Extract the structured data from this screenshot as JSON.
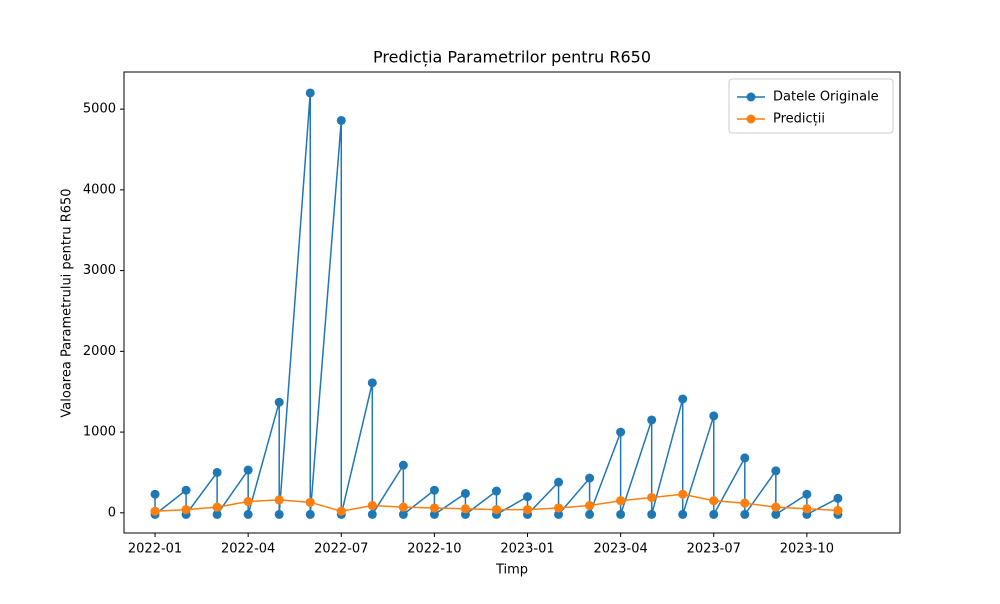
{
  "chart_data": {
    "type": "line",
    "title": "Predicția Parametrilor pentru R650",
    "xlabel": "Timp",
    "ylabel": "Valoarea Parametrului pentru R650",
    "x": [
      "2022-01",
      "2022-01",
      "2022-02",
      "2022-02",
      "2022-03",
      "2022-03",
      "2022-04",
      "2022-04",
      "2022-05",
      "2022-05",
      "2022-06",
      "2022-06",
      "2022-07",
      "2022-07",
      "2022-08",
      "2022-08",
      "2022-09",
      "2022-09",
      "2022-10",
      "2022-10",
      "2022-11",
      "2022-11",
      "2022-12",
      "2022-12",
      "2023-01",
      "2023-01",
      "2023-02",
      "2023-02",
      "2023-03",
      "2023-03",
      "2023-04",
      "2023-04",
      "2023-05",
      "2023-05",
      "2023-06",
      "2023-06",
      "2023-07",
      "2023-07",
      "2023-08",
      "2023-08",
      "2023-09",
      "2023-09",
      "2023-10",
      "2023-10",
      "2023-11",
      "2023-11"
    ],
    "series": [
      {
        "name": "Datele Originale",
        "color": "#1f77b4",
        "values": [
          230,
          -20,
          280,
          -20,
          500,
          -20,
          530,
          -20,
          1370,
          -20,
          5200,
          -20,
          4860,
          -20,
          1610,
          -20,
          590,
          -20,
          280,
          -20,
          240,
          -20,
          270,
          -20,
          200,
          -20,
          380,
          -20,
          430,
          -20,
          1000,
          -20,
          1150,
          -20,
          1410,
          -20,
          1200,
          -20,
          680,
          -20,
          520,
          -20,
          230,
          -20,
          180,
          -20
        ]
      },
      {
        "name": "Predicții",
        "color": "#ff7f0e",
        "values": [
          20,
          20,
          40,
          40,
          70,
          70,
          140,
          140,
          160,
          160,
          130,
          130,
          20,
          20,
          90,
          90,
          70,
          70,
          60,
          60,
          50,
          50,
          40,
          40,
          40,
          40,
          60,
          60,
          90,
          90,
          150,
          150,
          190,
          190,
          230,
          230,
          150,
          150,
          120,
          120,
          70,
          70,
          50,
          50,
          30,
          30
        ]
      }
    ],
    "xlim": [
      "2021-12",
      "2024-01"
    ],
    "xticks": [
      "2022-01",
      "2022-04",
      "2022-07",
      "2022-10",
      "2023-01",
      "2023-04",
      "2023-07",
      "2023-10"
    ],
    "ylim": [
      -250,
      5460
    ],
    "yticks": [
      0,
      1000,
      2000,
      3000,
      4000,
      5000
    ],
    "legend": "upper right"
  }
}
